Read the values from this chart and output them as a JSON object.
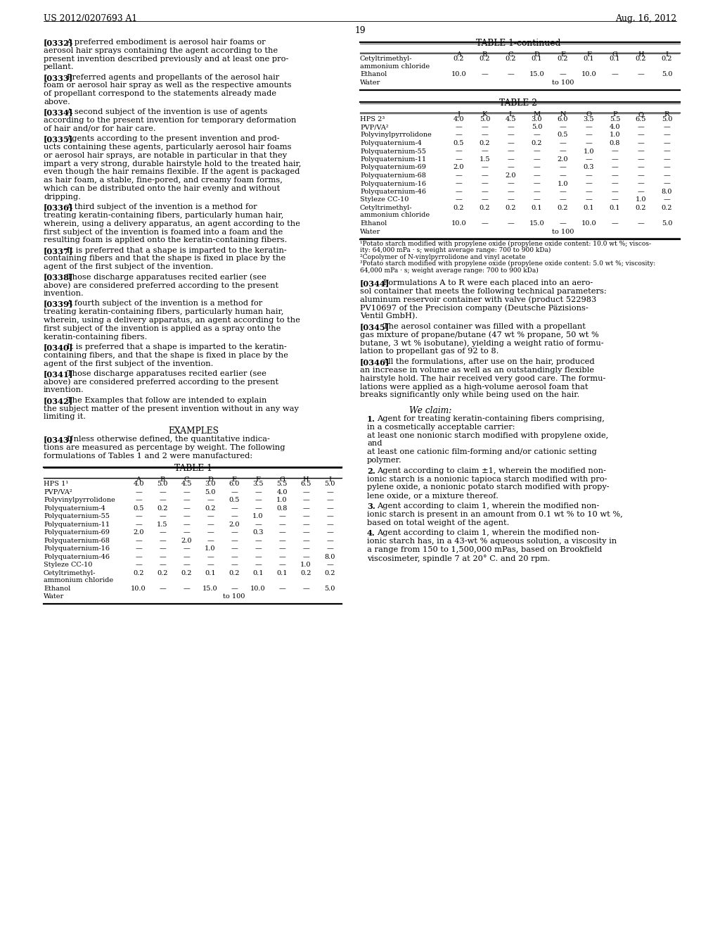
{
  "header_left": "US 2012/0207693 A1",
  "header_right": "Aug. 16, 2012",
  "page_num": "19",
  "bg_color": "#ffffff",
  "left_paragraphs": [
    {
      "tag": "[0332]",
      "lines": [
        "A preferred embodiment is aerosol hair foams or",
        "aerosol hair sprays containing the agent according to the",
        "present invention described previously and at least one pro-",
        "pellant."
      ]
    },
    {
      "tag": "[0333]",
      "lines": [
        "Preferred agents and propellants of the aerosol hair",
        "foam or aerosol hair spray as well as the respective amounts",
        "of propellant correspond to the statements already made",
        "above."
      ]
    },
    {
      "tag": "[0334]",
      "lines": [
        "A second subject of the invention is use of agents",
        "according to the present invention for temporary deformation",
        "of hair and/or for hair care."
      ]
    },
    {
      "tag": "[0335]",
      "lines": [
        "Agents according to the present invention and prod-",
        "ucts containing these agents, particularly aerosol hair foams",
        "or aerosol hair sprays, are notable in particular in that they",
        "impart a very strong, durable hairstyle hold to the treated hair,",
        "even though the hair remains flexible. If the agent is packaged",
        "as hair foam, a stable, fine-pored, and creamy foam forms,",
        "which can be distributed onto the hair evenly and without",
        "dripping."
      ]
    },
    {
      "tag": "[0336]",
      "lines": [
        "A third subject of the invention is a method for",
        "treating keratin-containing fibers, particularly human hair,",
        "wherein, using a delivery apparatus, an agent according to the",
        "first subject of the invention is foamed into a foam and the",
        "resulting foam is applied onto the keratin-containing fibers."
      ]
    },
    {
      "tag": "[0337]",
      "lines": [
        "It is preferred that a shape is imparted to the keratin-",
        "containing fibers and that the shape is fixed in place by the",
        "agent of the first subject of the invention."
      ]
    },
    {
      "tag": "[0338]",
      "lines": [
        "Those discharge apparatuses recited earlier (see",
        "above) are considered preferred according to the present",
        "invention."
      ]
    },
    {
      "tag": "[0339]",
      "lines": [
        "A fourth subject of the invention is a method for",
        "treating keratin-containing fibers, particularly human hair,",
        "wherein, using a delivery apparatus, an agent according to the",
        "first subject of the invention is applied as a spray onto the",
        "keratin-containing fibers."
      ]
    },
    {
      "tag": "[0340]",
      "lines": [
        "It is preferred that a shape is imparted to the keratin-",
        "containing fibers, and that the shape is fixed in place by the",
        "agent of the first subject of the invention."
      ]
    },
    {
      "tag": "[0341]",
      "lines": [
        "Those discharge apparatuses recited earlier (see",
        "above) are considered preferred according to the present",
        "invention."
      ]
    },
    {
      "tag": "[0342]",
      "lines": [
        "The Examples that follow are intended to explain",
        "the subject matter of the present invention without in any way",
        "limiting it."
      ]
    }
  ],
  "examples_header": "EXAMPLES",
  "para_0343": {
    "tag": "[0343]",
    "lines": [
      "Unless otherwise defined, the quantitative indica-",
      "tions are measured as percentage by weight. The following",
      "formulations of Tables 1 and 2 were manufactured:"
    ]
  },
  "table1_title": "TABLE 1",
  "table1_cols": [
    "A",
    "B",
    "C",
    "D",
    "E",
    "F",
    "G",
    "H",
    "I"
  ],
  "table1_rows": [
    [
      "HPS 1¹",
      "4.0",
      "5.0",
      "4.5",
      "3.0",
      "6.0",
      "3.5",
      "5.5",
      "6.5",
      "5.0"
    ],
    [
      "PVP/VA²",
      "—",
      "—",
      "—",
      "5.0",
      "—",
      "—",
      "4.0",
      "—",
      "—"
    ],
    [
      "Polyvinylpyrrolidone",
      "—",
      "—",
      "—",
      "—",
      "0.5",
      "—",
      "1.0",
      "—",
      "—"
    ],
    [
      "Polyquaternium-4",
      "0.5",
      "0.2",
      "—",
      "0.2",
      "—",
      "—",
      "0.8",
      "—",
      "—"
    ],
    [
      "Polyquaternium-55",
      "—",
      "—",
      "—",
      "—",
      "—",
      "1.0",
      "—",
      "—",
      "—"
    ],
    [
      "Polyquaternium-11",
      "—",
      "1.5",
      "—",
      "—",
      "2.0",
      "—",
      "—",
      "—",
      "—"
    ],
    [
      "Polyquaternium-69",
      "2.0",
      "—",
      "—",
      "—",
      "—",
      "0.3",
      "—",
      "—",
      "—"
    ],
    [
      "Polyquaternium-68",
      "—",
      "—",
      "2.0",
      "—",
      "—",
      "—",
      "—",
      "—",
      "—"
    ],
    [
      "Polyquaternium-16",
      "—",
      "—",
      "—",
      "1.0",
      "—",
      "—",
      "—",
      "—",
      "—"
    ],
    [
      "Polyquaternium-46",
      "—",
      "—",
      "—",
      "—",
      "—",
      "—",
      "—",
      "—",
      "8.0"
    ],
    [
      "Styleze CC-10",
      "—",
      "—",
      "—",
      "—",
      "—",
      "—",
      "—",
      "1.0",
      "—"
    ],
    [
      "Cetyltrimethyl-|ammonium chloride",
      "0.2",
      "0.2",
      "0.2",
      "0.1",
      "0.2",
      "0.1",
      "0.1",
      "0.2",
      "0.2"
    ],
    [
      "Ethanol",
      "10.0",
      "—",
      "—",
      "15.0",
      "—",
      "10.0",
      "—",
      "—",
      "5.0"
    ],
    [
      "Water",
      "~to100~",
      "",
      "",
      "",
      "",
      "",
      "",
      "",
      ""
    ]
  ],
  "table1cont_title": "TABLE 1-continued",
  "table1cont_cols": [
    "A",
    "B",
    "C",
    "D",
    "E",
    "F",
    "G",
    "H",
    "I"
  ],
  "table1cont_rows": [
    [
      "Cetyltrimethyl-|ammonium chloride",
      "0.2",
      "0.2",
      "0.2",
      "0.1",
      "0.2",
      "0.1",
      "0.1",
      "0.2",
      "0.2"
    ],
    [
      "Ethanol",
      "10.0",
      "—",
      "—",
      "15.0",
      "—",
      "10.0",
      "—",
      "—",
      "5.0"
    ],
    [
      "Water",
      "~to100~",
      "",
      "",
      "",
      "",
      "",
      "",
      "",
      ""
    ]
  ],
  "table2_title": "TABLE 2",
  "table2_cols": [
    "J",
    "K",
    "L",
    "M",
    "N",
    "O",
    "P",
    "Q",
    "R"
  ],
  "table2_rows": [
    [
      "HPS 2³",
      "4.0",
      "5.0",
      "4.5",
      "3.0",
      "6.0",
      "3.5",
      "5.5",
      "6.5",
      "5.0"
    ],
    [
      "PVP/VA²",
      "—",
      "—",
      "—",
      "5.0",
      "—",
      "—",
      "4.0",
      "—",
      "—"
    ],
    [
      "Polyvinylpyrrolidone",
      "—",
      "—",
      "—",
      "—",
      "0.5",
      "—",
      "1.0",
      "—",
      "—"
    ],
    [
      "Polyquaternium-4",
      "0.5",
      "0.2",
      "—",
      "0.2",
      "—",
      "—",
      "0.8",
      "—",
      "—"
    ],
    [
      "Polyquaternium-55",
      "—",
      "—",
      "—",
      "—",
      "—",
      "1.0",
      "—",
      "—",
      "—"
    ],
    [
      "Polyquaternium-11",
      "—",
      "1.5",
      "—",
      "—",
      "2.0",
      "—",
      "—",
      "—",
      "—"
    ],
    [
      "Polyquaternium-69",
      "2.0",
      "—",
      "—",
      "—",
      "—",
      "0.3",
      "—",
      "—",
      "—"
    ],
    [
      "Polyquaternium-68",
      "—",
      "—",
      "2.0",
      "—",
      "—",
      "—",
      "—",
      "—",
      "—"
    ],
    [
      "Polyquaternium-16",
      "—",
      "—",
      "—",
      "—",
      "1.0",
      "—",
      "—",
      "—",
      "—"
    ],
    [
      "Polyquaternium-46",
      "—",
      "—",
      "—",
      "—",
      "—",
      "—",
      "—",
      "—",
      "8.0"
    ],
    [
      "Styleze CC-10",
      "—",
      "—",
      "—",
      "—",
      "—",
      "—",
      "—",
      "1.0",
      "—"
    ],
    [
      "Cetyltrimethyl-|ammonium chloride",
      "0.2",
      "0.2",
      "0.2",
      "0.1",
      "0.2",
      "0.1",
      "0.1",
      "0.2",
      "0.2"
    ],
    [
      "Ethanol",
      "10.0",
      "—",
      "—",
      "15.0",
      "—",
      "10.0",
      "—",
      "—",
      "5.0"
    ],
    [
      "Water",
      "~to100~",
      "",
      "",
      "",
      "",
      "",
      "",
      "",
      ""
    ]
  ],
  "table2_footnotes": [
    "¹Potato starch modified with propylene oxide (propylene oxide content: 10.0 wt %; viscos-",
    "ity: 64,000 mPa · s; weight average range: 700 to 900 kDa)",
    "²Copolymer of N-vinylpyrrolidone and vinyl acetate",
    "³Potato starch modified with propylene oxide (propylene oxide content: 5.0 wt %; viscosity:",
    "64,000 mPa · s; weight average range: 700 to 900 kDa)"
  ],
  "right_col_top_paragraphs": [
    {
      "tag": "[0344]",
      "lines": [
        "Formulations A to R were each placed into an aero-",
        "sol container that meets the following technical parameters:",
        "aluminum reservoir container with valve (product 522983",
        "PV10697 of the Precision company (Deutsche Päzisions-",
        "Ventil GmbH)."
      ]
    },
    {
      "tag": "[0345]",
      "lines": [
        "The aerosol container was filled with a propellant",
        "gas mixture of propane/butane (47 wt % propane, 50 wt %",
        "butane, 3 wt % isobutane), yielding a weight ratio of formu-",
        "lation to propellant gas of 92 to 8."
      ]
    },
    {
      "tag": "[0346]",
      "lines": [
        "All the formulations, after use on the hair, produced",
        "an increase in volume as well as an outstandingly flexible",
        "hairstyle hold. The hair received very good care. The formu-",
        "lations were applied as a high-volume aerosol foam that",
        "breaks significantly only while being used on the hair."
      ]
    }
  ],
  "claims_header": "We claim:",
  "claims": [
    {
      "num": "1.",
      "lines": [
        "Agent for treating keratin-containing fibers comprising,",
        "in a cosmetically acceptable carrier:",
        "at least one nonionic starch modified with propylene oxide,",
        "and",
        "at least one cationic film-forming and/or cationic setting",
        "polymer."
      ]
    },
    {
      "num": "2.",
      "lines": [
        "Agent according to claim ±1, wherein the modified non-",
        "ionic starch is a nonionic tapioca starch modified with pro-",
        "pylene oxide, a nonionic potato starch modified with propy-",
        "lene oxide, or a mixture thereof."
      ]
    },
    {
      "num": "3.",
      "lines": [
        "Agent according to claim 1, wherein the modified non-",
        "ionic starch is present in an amount from 0.1 wt % to 10 wt %,",
        "based on total weight of the agent."
      ]
    },
    {
      "num": "4.",
      "lines": [
        "Agent according to claim 1, wherein the modified non-",
        "ionic starch has, in a 43-wt % aqueous solution, a viscosity in",
        "a range from 150 to 1,500,000 mPas, based on Brookfield",
        "viscosimeter, spindle 7 at 20° C. and 20 rpm."
      ]
    }
  ]
}
